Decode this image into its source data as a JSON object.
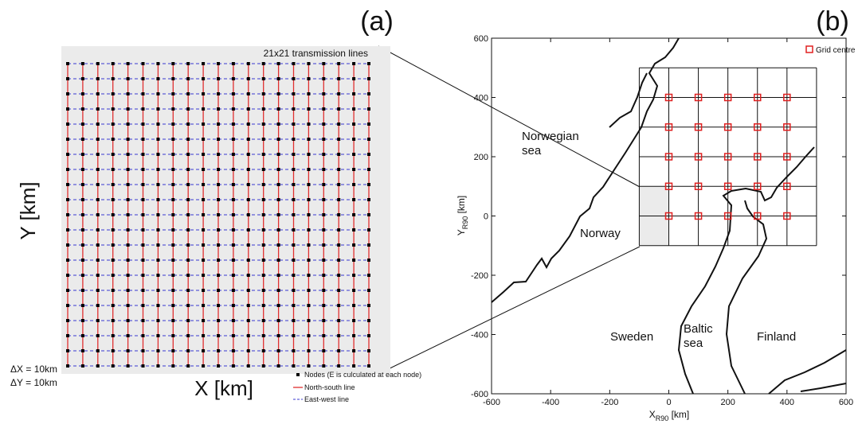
{
  "chart_data": [
    {
      "type": "node-grid",
      "panel": "(a)",
      "title": "21x21 transmission lines",
      "n": 21,
      "xlabel": "X [km]",
      "ylabel": "Y [km]",
      "spacing_labels": [
        "ΔX = 10km",
        "ΔY = 10km"
      ],
      "background": "#ebebeb",
      "node_color": "#000000",
      "ns_color": "#e03030",
      "ew_color": "#3a3ad0",
      "legend": [
        "Nodes (E is culculated at each node)",
        "North-south line",
        "East-west line"
      ]
    },
    {
      "type": "map-grid",
      "panel": "(b)",
      "xlabel": {
        "main": "X",
        "sub": "R90",
        "unit": " [km]"
      },
      "ylabel": {
        "main": "Y",
        "sub": "R90",
        "unit": " [km]"
      },
      "xlim": [
        -600,
        600
      ],
      "ylim": [
        -600,
        600
      ],
      "xticks": [
        -600,
        -400,
        -200,
        0,
        200,
        400,
        600
      ],
      "yticks": [
        -600,
        -400,
        -200,
        0,
        200,
        400,
        600
      ],
      "grid_x": [
        -100,
        0,
        100,
        200,
        300,
        400,
        500
      ],
      "grid_y": [
        -100,
        0,
        100,
        200,
        300,
        400,
        500
      ],
      "shaded": {
        "x": [
          -100,
          0
        ],
        "y": [
          -100,
          100
        ],
        "color": "#ebebeb"
      },
      "series": [
        {
          "name": "Grid centre",
          "color": "#e02020",
          "x": [
            0,
            100,
            200,
            300,
            400,
            0,
            100,
            200,
            300,
            400,
            0,
            100,
            200,
            300,
            400,
            0,
            100,
            200,
            300,
            400,
            0,
            100,
            200,
            300,
            400
          ],
          "values": [
            0,
            0,
            0,
            0,
            0,
            100,
            100,
            100,
            100,
            100,
            200,
            200,
            200,
            200,
            200,
            300,
            300,
            300,
            300,
            300,
            400,
            400,
            400,
            400,
            400
          ]
        }
      ],
      "annotations": [
        "Norwegian sea",
        "Norway",
        "Sweden",
        "Baltic sea",
        "Finland"
      ]
    }
  ]
}
